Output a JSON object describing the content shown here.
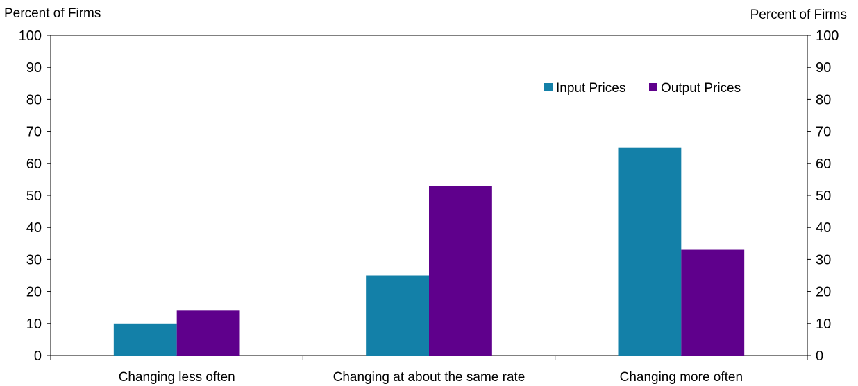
{
  "chart_data": {
    "type": "bar",
    "categories": [
      "Changing less often",
      "Changing at about the same rate",
      "Changing more often"
    ],
    "series": [
      {
        "name": "Input Prices",
        "values": [
          10,
          25,
          65
        ],
        "color": "#1380A8"
      },
      {
        "name": "Output Prices",
        "values": [
          14,
          53,
          33
        ],
        "color": "#5F008C"
      }
    ],
    "ylabel_left": "Percent of Firms",
    "ylabel_right": "Percent of Firms",
    "ylim": [
      0,
      100
    ],
    "yticks": [
      0,
      10,
      20,
      30,
      40,
      50,
      60,
      70,
      80,
      90,
      100
    ],
    "legend_position": "top-right",
    "grid": false
  }
}
